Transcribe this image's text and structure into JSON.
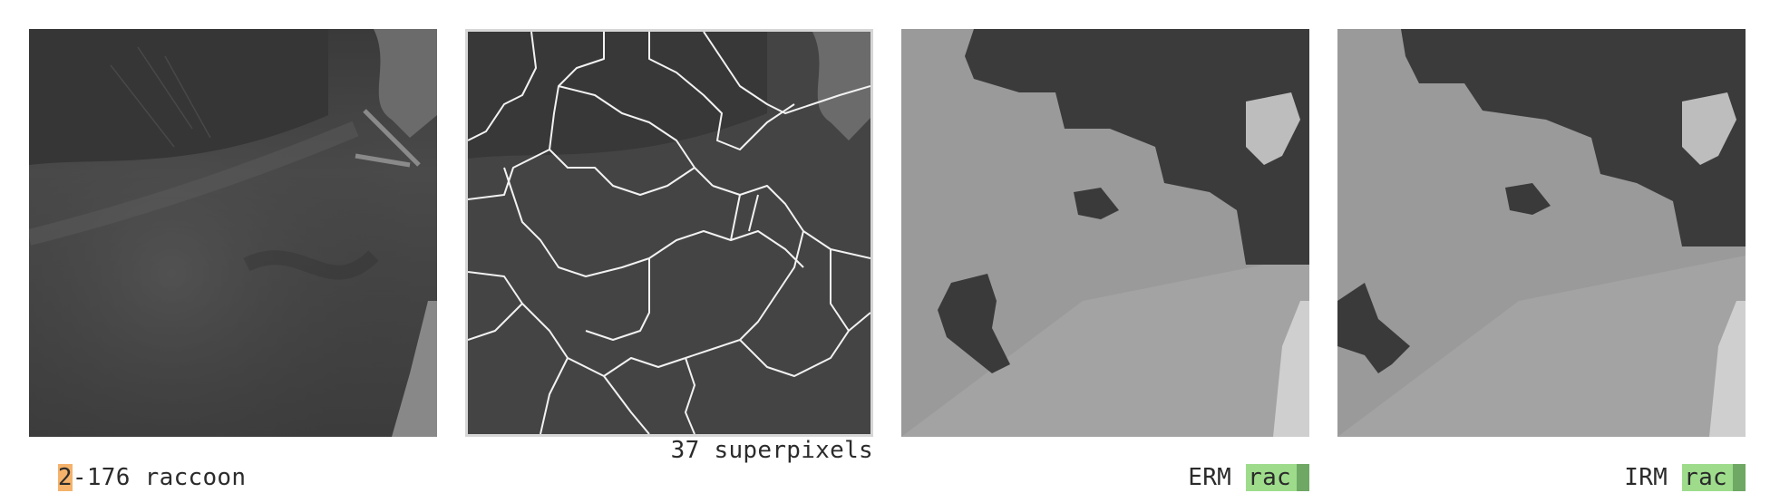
{
  "panels": [
    {
      "caption_highlight": "2",
      "caption_rest": "-176 raccoon"
    },
    {
      "caption": "37 superpixels"
    },
    {
      "method": "ERM",
      "tag": "rac"
    },
    {
      "method": "IRM",
      "tag": "rac"
    }
  ],
  "colors": {
    "highlight": "#f4b26b",
    "tag": "#9edc8c",
    "tag_bar": "#6fa864"
  }
}
